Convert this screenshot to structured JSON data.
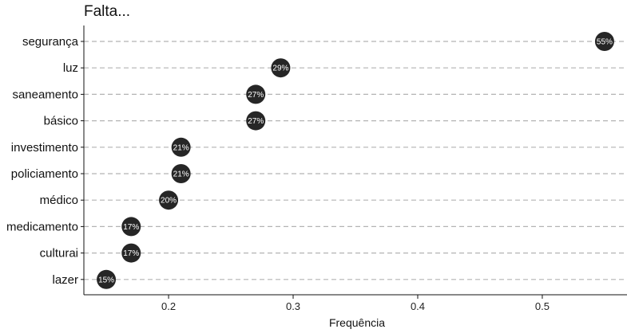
{
  "chart_data": {
    "type": "dot",
    "title": "Falta...",
    "xlabel": "Frequência",
    "ylabel": "",
    "xlim": [
      0.132,
      0.568
    ],
    "x_ticks": [
      0.2,
      0.3,
      0.4,
      0.5
    ],
    "x_tick_labels": [
      "0.2",
      "0.3",
      "0.4",
      "0.5"
    ],
    "grid": "horizontal dashed",
    "point_color": "#262626",
    "grid_color": "#b3b3b3",
    "categories": [
      "segurança",
      "luz",
      "saneamento",
      "básico",
      "investimento",
      "policiamento",
      "médico",
      "medicamento",
      "culturai",
      "lazer"
    ],
    "values": [
      0.55,
      0.29,
      0.27,
      0.27,
      0.21,
      0.21,
      0.2,
      0.17,
      0.17,
      0.15
    ],
    "labels": [
      "55%",
      "29%",
      "27%",
      "27%",
      "21%",
      "21%",
      "20%",
      "17%",
      "17%",
      "15%"
    ]
  }
}
